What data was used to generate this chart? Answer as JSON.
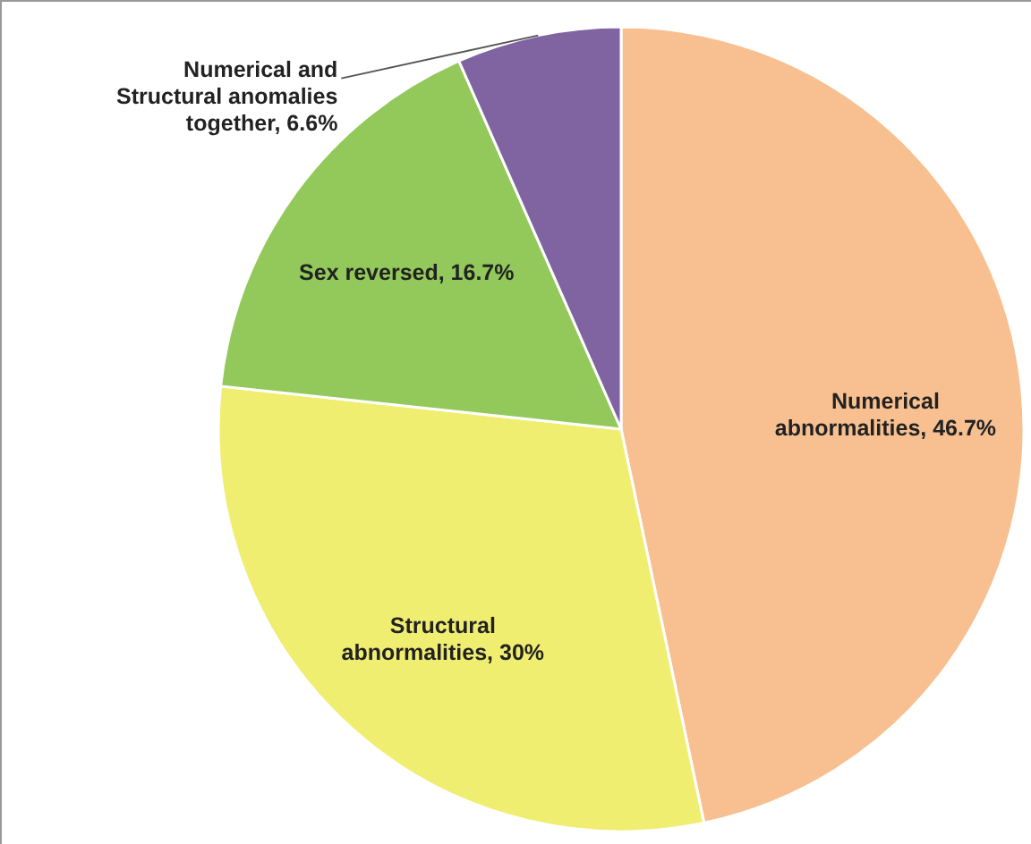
{
  "chart_data": {
    "type": "pie",
    "categories": [
      "Numerical abnormalities",
      "Structural abnormalities",
      "Sex reversed",
      "Numerical and Structural anomalies together"
    ],
    "values": [
      46.7,
      30,
      16.7,
      6.6
    ],
    "value_labels": [
      "46.7%",
      "30%",
      "16.7%",
      "6.6%"
    ],
    "colors": [
      "#f8c090",
      "#f0ee70",
      "#92c95a",
      "#8064a2"
    ]
  }
}
